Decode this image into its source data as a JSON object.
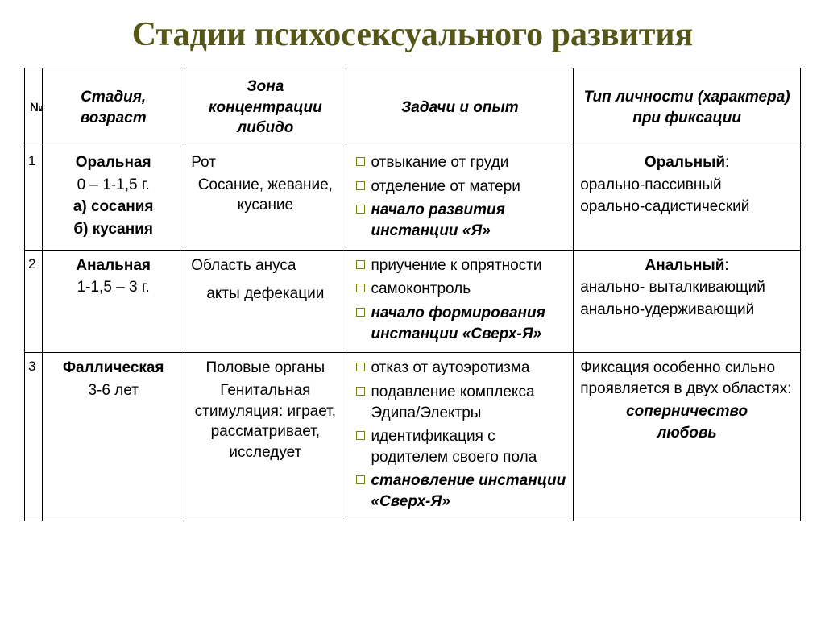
{
  "title": "Стадии психосексуального развития",
  "headers": {
    "num": "№",
    "stage": "Стадия, возраст",
    "zone": "Зона концентрации либидо",
    "tasks": "Задачи и опыт",
    "type": "Тип личности (характера) при фиксации"
  },
  "colors": {
    "title": "#545717",
    "bullet_border": "#7a7e17",
    "table_border": "#000000",
    "text": "#000000",
    "background": "#ffffff"
  },
  "rows": [
    {
      "num": "1",
      "stage_name": "Оральная",
      "stage_age": "0 – 1-1,5 г.",
      "stage_sub_a": "а) сосания",
      "stage_sub_b": "б) кусания",
      "zone_main": "Рот",
      "zone_detail": "Сосание, жевание, кусание",
      "tasks": [
        {
          "text": "отвыкание от груди",
          "bi": false
        },
        {
          "text": "отделение от матери",
          "bi": false
        },
        {
          "text": "начало развития инстанции «Я»",
          "bi": true
        }
      ],
      "type_title": "Оральный",
      "type_lines": [
        "орально-пассивный",
        "орально-садистический"
      ],
      "type_center_title": true
    },
    {
      "num": "2",
      "stage_name": "Анальная",
      "stage_age": "1-1,5 – 3 г.",
      "zone_main": "Область ануса",
      "zone_detail": "акты дефекации",
      "tasks": [
        {
          "text": "приучение к опрятности",
          "bi": false
        },
        {
          "text": "самоконтроль",
          "bi": false
        },
        {
          "text": "начало формирования инстанции «Сверх-Я»",
          "bi": true
        }
      ],
      "type_title": "Анальный",
      "type_lines": [
        "анально- выталкивающий",
        "анально-удерживающий"
      ],
      "type_center_title": true
    },
    {
      "num": "3",
      "stage_name": "Фаллическая",
      "stage_age": "3-6 лет",
      "zone_main": "Половые органы",
      "zone_detail": "Генитальная стимуляция: играет, рассматривает, исследует",
      "tasks": [
        {
          "text": "отказ от аутоэротизма",
          "bi": false
        },
        {
          "text": "подавление комплекса Эдипа/Электры",
          "bi": false
        },
        {
          "text": "идентификация с родителем своего пола",
          "bi": false
        },
        {
          "text": "становление инстанции «Сверх-Я»",
          "bi": true
        }
      ],
      "type_intro": "Фиксация особенно сильно проявляется в двух областях:",
      "type_emph": [
        "соперничество",
        "любовь"
      ]
    }
  ]
}
